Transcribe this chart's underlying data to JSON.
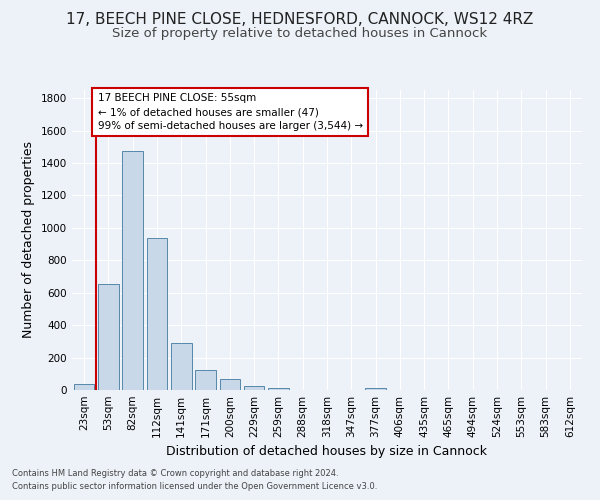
{
  "title_line1": "17, BEECH PINE CLOSE, HEDNESFORD, CANNOCK, WS12 4RZ",
  "title_line2": "Size of property relative to detached houses in Cannock",
  "xlabel": "Distribution of detached houses by size in Cannock",
  "ylabel": "Number of detached properties",
  "categories": [
    "23sqm",
    "53sqm",
    "82sqm",
    "112sqm",
    "141sqm",
    "171sqm",
    "200sqm",
    "229sqm",
    "259sqm",
    "288sqm",
    "318sqm",
    "347sqm",
    "377sqm",
    "406sqm",
    "435sqm",
    "465sqm",
    "494sqm",
    "524sqm",
    "553sqm",
    "583sqm",
    "612sqm"
  ],
  "values": [
    40,
    655,
    1475,
    940,
    290,
    125,
    65,
    25,
    15,
    0,
    0,
    0,
    15,
    0,
    0,
    0,
    0,
    0,
    0,
    0,
    0
  ],
  "bar_color": "#c8d8e8",
  "bar_edge_color": "#5588aa",
  "highlight_color": "#cc0000",
  "annotation_text": "17 BEECH PINE CLOSE: 55sqm\n← 1% of detached houses are smaller (47)\n99% of semi-detached houses are larger (3,544) →",
  "ylim": [
    0,
    1850
  ],
  "yticks": [
    0,
    200,
    400,
    600,
    800,
    1000,
    1200,
    1400,
    1600,
    1800
  ],
  "footnote1": "Contains HM Land Registry data © Crown copyright and database right 2024.",
  "footnote2": "Contains public sector information licensed under the Open Government Licence v3.0.",
  "bg_color": "#edf2f9",
  "title1_fontsize": 11,
  "title2_fontsize": 9.5,
  "tick_fontsize": 7.5,
  "ylabel_fontsize": 9,
  "xlabel_fontsize": 9,
  "annot_fontsize": 7.5,
  "footnote_fontsize": 6
}
